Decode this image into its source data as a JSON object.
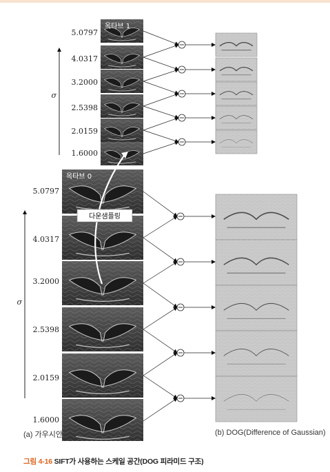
{
  "octave1": {
    "label": "옥타브 1",
    "scales": [
      "5.0797",
      "4.0317",
      "3.2000",
      "2.5398",
      "2.0159",
      "1.6000"
    ]
  },
  "octave0": {
    "label": "옥타브 0",
    "scales": [
      "5.0797",
      "4.0317",
      "3.2000",
      "2.5398",
      "2.0159",
      "1.6000"
    ]
  },
  "axis_symbol": "σ",
  "downsample_label": "다운샘플링",
  "subcaption_a": "(a) 가우시안",
  "subcaption_b": "(b) DOG(Difference of Gaussian)",
  "caption": {
    "number": "그림 4-16",
    "text": "SIFT가 사용하는 스케일 공간(DOG 피라미드 구조)"
  },
  "colors": {
    "accent": "#e0631e",
    "top_bar": "#f7e3cf"
  }
}
